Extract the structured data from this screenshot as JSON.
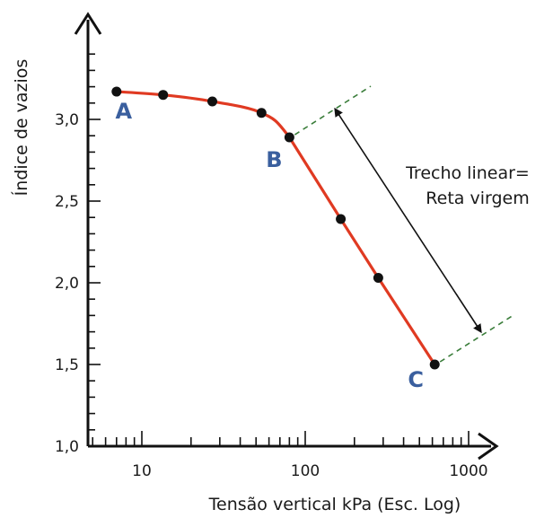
{
  "chart_data": {
    "type": "line",
    "xscale": "log",
    "xlabel": "Tensão vertical kPa (Esc. Log)",
    "ylabel": "Índice de vazios",
    "xlim": [
      5,
      1000
    ],
    "ylim": [
      1.0,
      3.5
    ],
    "x_tick_labels": [
      "10",
      "100",
      "1000"
    ],
    "y_tick_labels": [
      "1,0",
      "1,5",
      "2,0",
      "2,5",
      "3,0"
    ],
    "series": [
      {
        "x": [
          7,
          13.5,
          27,
          54,
          80,
          165,
          280,
          620
        ],
        "y": [
          3.17,
          3.15,
          3.11,
          3.04,
          2.89,
          2.39,
          2.03,
          1.5
        ],
        "color": "#e03a22"
      }
    ],
    "point_labels": [
      {
        "text": "A",
        "x": 7,
        "y": 3.17
      },
      {
        "text": "B",
        "x": 80,
        "y": 2.89
      },
      {
        "text": "C",
        "x": 620,
        "y": 1.5
      }
    ],
    "annotation": {
      "lines": [
        "Trecho linear=",
        "Reta virgem"
      ]
    },
    "extension_color": "#3a7d3a",
    "grid": false
  }
}
